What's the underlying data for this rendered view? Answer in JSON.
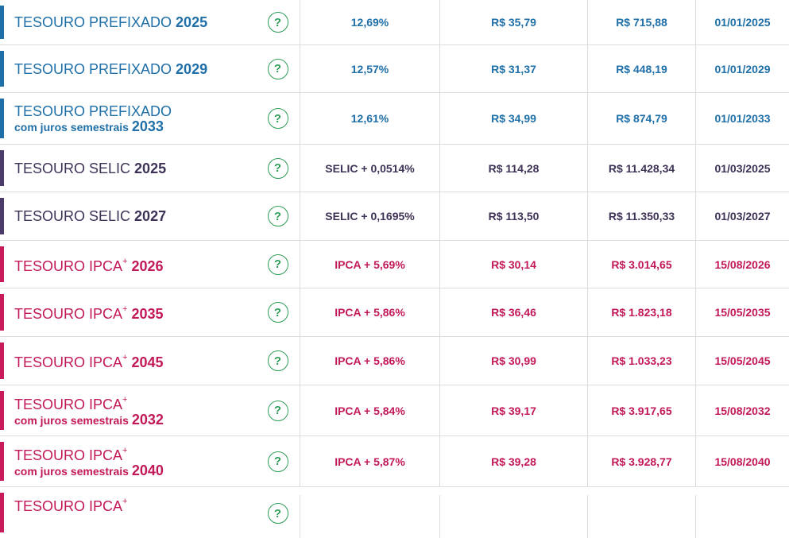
{
  "colors": {
    "prefixado": "#1f6fa8",
    "selic": "#3f3257",
    "ipca": "#c21859",
    "help_icon": "#2e9e58"
  },
  "help_icon_glyph": "?",
  "rows": [
    {
      "name": "TESOURO PREFIXADO",
      "sup": "",
      "sub": "",
      "year": "2025",
      "rate": "12,69%",
      "min": "R$ 35,79",
      "unit": "R$ 715,88",
      "date": "01/01/2025"
    },
    {
      "name": "TESOURO PREFIXADO",
      "sup": "",
      "sub": "",
      "year": "2029",
      "rate": "12,57%",
      "min": "R$ 31,37",
      "unit": "R$ 448,19",
      "date": "01/01/2029"
    },
    {
      "name": "TESOURO PREFIXADO",
      "sup": "",
      "sub": "com juros semestrais",
      "year": "2033",
      "rate": "12,61%",
      "min": "R$ 34,99",
      "unit": "R$ 874,79",
      "date": "01/01/2033"
    },
    {
      "name": "TESOURO SELIC",
      "sup": "",
      "sub": "",
      "year": "2025",
      "rate": "SELIC + 0,0514%",
      "min": "R$ 114,28",
      "unit": "R$ 11.428,34",
      "date": "01/03/2025"
    },
    {
      "name": "TESOURO SELIC",
      "sup": "",
      "sub": "",
      "year": "2027",
      "rate": "SELIC + 0,1695%",
      "min": "R$ 113,50",
      "unit": "R$ 11.350,33",
      "date": "01/03/2027"
    },
    {
      "name": "TESOURO IPCA",
      "sup": "+",
      "sub": "",
      "year": "2026",
      "rate": "IPCA + 5,69%",
      "min": "R$ 30,14",
      "unit": "R$ 3.014,65",
      "date": "15/08/2026"
    },
    {
      "name": "TESOURO IPCA",
      "sup": "+",
      "sub": "",
      "year": "2035",
      "rate": "IPCA + 5,86%",
      "min": "R$ 36,46",
      "unit": "R$ 1.823,18",
      "date": "15/05/2035"
    },
    {
      "name": "TESOURO IPCA",
      "sup": "+",
      "sub": "",
      "year": "2045",
      "rate": "IPCA + 5,86%",
      "min": "R$ 30,99",
      "unit": "R$ 1.033,23",
      "date": "15/05/2045"
    },
    {
      "name": "TESOURO IPCA",
      "sup": "+",
      "sub": "com juros semestrais",
      "year": "2032",
      "rate": "IPCA + 5,84%",
      "min": "R$ 39,17",
      "unit": "R$ 3.917,65",
      "date": "15/08/2032"
    },
    {
      "name": "TESOURO IPCA",
      "sup": "+",
      "sub": "com juros semestrais",
      "year": "2040",
      "rate": "IPCA + 5,87%",
      "min": "R$ 39,28",
      "unit": "R$ 3.928,77",
      "date": "15/08/2040"
    },
    {
      "name": "TESOURO IPCA",
      "sup": "+",
      "sub": "",
      "year": "",
      "rate": "",
      "min": "",
      "unit": "",
      "date": ""
    }
  ]
}
